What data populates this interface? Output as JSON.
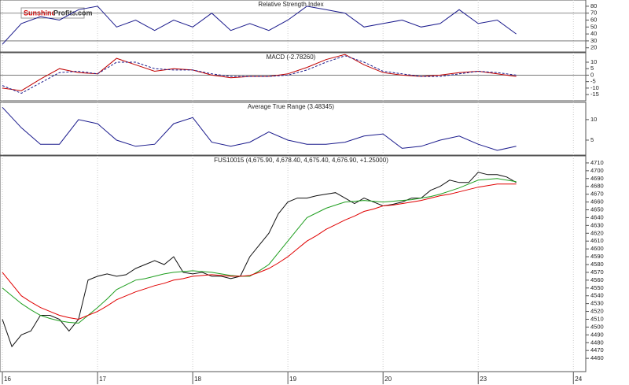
{
  "logo": {
    "part1": "Sunshine",
    "part2": "Profits.com"
  },
  "chart_data": [
    {
      "type": "line",
      "title": "Relative Strength Index",
      "x": [
        0,
        0.2,
        0.4,
        0.6,
        0.8,
        1,
        1.2,
        1.4,
        1.6,
        1.8,
        2,
        2.2,
        2.4,
        2.6,
        2.8,
        3,
        3.2,
        3.4,
        3.6,
        3.8,
        4,
        4.2,
        4.4,
        4.6,
        4.8,
        5,
        5.2,
        5.4
      ],
      "series": [
        {
          "color": "#1a1a8c",
          "values": [
            25,
            55,
            65,
            60,
            75,
            80,
            50,
            60,
            45,
            60,
            50,
            70,
            45,
            55,
            45,
            60,
            80,
            75,
            70,
            50,
            55,
            60,
            50,
            55,
            75,
            55,
            60,
            40
          ]
        }
      ],
      "ylim": [
        14,
        89
      ],
      "yticks": [
        20,
        30,
        40,
        50,
        60,
        70,
        80
      ],
      "reference_lines": [
        70,
        30
      ]
    },
    {
      "type": "line",
      "title": "MACD (-2.78260)",
      "x": [
        0,
        0.2,
        0.4,
        0.6,
        0.8,
        1,
        1.2,
        1.4,
        1.6,
        1.8,
        2,
        2.2,
        2.4,
        2.6,
        2.8,
        3,
        3.2,
        3.4,
        3.6,
        3.8,
        4,
        4.2,
        4.4,
        4.6,
        4.8,
        5,
        5.2,
        5.4
      ],
      "series": [
        {
          "color": "#c00000",
          "values": [
            -10,
            -12,
            -3,
            5,
            2,
            1,
            13,
            8,
            3,
            5,
            4,
            0,
            -2,
            -1,
            -1,
            1,
            6,
            12,
            16,
            8,
            2,
            0,
            -1,
            0,
            2,
            3,
            1,
            -1
          ]
        },
        {
          "color": "#1a1a8c",
          "style": "dashed",
          "values": [
            -8,
            -14,
            -6,
            2,
            3,
            1,
            10,
            10,
            5,
            4,
            4,
            1,
            -1,
            -1,
            -1,
            0,
            4,
            10,
            15,
            10,
            3,
            1,
            -1,
            -1,
            1,
            3,
            2,
            0
          ]
        }
      ],
      "ylim": [
        -19.8,
        17.3
      ],
      "yticks": [
        10,
        5,
        0,
        -5,
        -10,
        -15
      ],
      "reference_lines": [
        0
      ]
    },
    {
      "type": "line",
      "title": "Average True Range (3.48345)",
      "x": [
        0,
        0.2,
        0.4,
        0.6,
        0.8,
        1,
        1.2,
        1.4,
        1.6,
        1.8,
        2,
        2.2,
        2.4,
        2.6,
        2.8,
        3,
        3.2,
        3.4,
        3.6,
        3.8,
        4,
        4.2,
        4.4,
        4.6,
        4.8,
        5,
        5.2,
        5.4
      ],
      "series": [
        {
          "color": "#1a1a8c",
          "values": [
            13,
            8,
            4,
            4,
            10,
            9,
            5,
            3.5,
            4,
            9,
            10.5,
            4.5,
            3.5,
            4.5,
            7,
            5,
            4,
            4,
            4.5,
            6,
            6.5,
            3,
            3.5,
            5,
            6,
            4,
            2.5,
            3.5
          ]
        }
      ],
      "ylim": [
        1.35,
        14.2
      ],
      "yticks": [
        10,
        5
      ]
    },
    {
      "type": "line",
      "title": "FUS10015 (4,675.90, 4,678.40, 4,675.40, 4,676.90, +1.25000)",
      "x": [
        0,
        0.1,
        0.2,
        0.3,
        0.4,
        0.5,
        0.6,
        0.7,
        0.8,
        0.9,
        1,
        1.1,
        1.2,
        1.3,
        1.4,
        1.5,
        1.6,
        1.7,
        1.8,
        1.9,
        2,
        2.1,
        2.2,
        2.3,
        2.4,
        2.5,
        2.6,
        2.7,
        2.8,
        2.9,
        3,
        3.1,
        3.2,
        3.3,
        3.4,
        3.5,
        3.6,
        3.7,
        3.8,
        3.9,
        4,
        4.1,
        4.2,
        4.3,
        4.4,
        4.5,
        4.6,
        4.7,
        4.8,
        4.9,
        5,
        5.1,
        5.2,
        5.3,
        5.4
      ],
      "series": [
        {
          "color": "#111111",
          "values": [
            4510,
            4475,
            4490,
            4495,
            4515,
            4515,
            4510,
            4495,
            4510,
            4560,
            4565,
            4568,
            4565,
            4567,
            4575,
            4580,
            4585,
            4580,
            4590,
            4570,
            4568,
            4570,
            4565,
            4565,
            4562,
            4565,
            4590,
            4605,
            4620,
            4645,
            4660,
            4665,
            4665,
            4668,
            4670,
            4672,
            4665,
            4658,
            4665,
            4660,
            4655,
            4657,
            4660,
            4665,
            4665,
            4675,
            4680,
            4688,
            4685,
            4685,
            4698,
            4695,
            4695,
            4692,
            4685
          ]
        },
        {
          "color": "#1f9e1f",
          "values": [
            4550,
            4540,
            4530,
            4522,
            4515,
            4511,
            4508,
            4506,
            4505,
            4515,
            4525,
            4536,
            4548,
            4554,
            4560,
            4562,
            4565,
            4568,
            4570,
            4571,
            4572,
            4571,
            4570,
            4568,
            4566,
            4565,
            4565,
            4572,
            4580,
            4595,
            4610,
            4625,
            4640,
            4646,
            4652,
            4656,
            4660,
            4661,
            4662,
            4661,
            4660,
            4661,
            4662,
            4663,
            4665,
            4667,
            4670,
            4674,
            4678,
            4683,
            4688,
            4689,
            4690,
            4688,
            4686
          ]
        },
        {
          "color": "#e00000",
          "values": [
            4570,
            4555,
            4540,
            4532,
            4525,
            4520,
            4515,
            4512,
            4510,
            4515,
            4520,
            4527,
            4535,
            4540,
            4545,
            4549,
            4553,
            4556,
            4560,
            4562,
            4565,
            4566,
            4567,
            4566,
            4565,
            4565,
            4566,
            4570,
            4575,
            4582,
            4590,
            4600,
            4610,
            4617,
            4625,
            4631,
            4637,
            4642,
            4648,
            4651,
            4655,
            4656,
            4658,
            4660,
            4662,
            4665,
            4668,
            4670,
            4673,
            4676,
            4679,
            4681,
            4683,
            4683,
            4683
          ]
        }
      ],
      "ylim": [
        4443,
        4719
      ],
      "yticks": [
        4460,
        4470,
        4480,
        4490,
        4500,
        4510,
        4520,
        4530,
        4540,
        4550,
        4560,
        4570,
        4580,
        4590,
        4600,
        4610,
        4620,
        4630,
        4640,
        4650,
        4660,
        4670,
        4680,
        4690,
        4700,
        4710
      ],
      "xlim": [
        -0.025,
        6.13
      ],
      "xticks": [
        {
          "value": 0,
          "label": "16"
        },
        {
          "value": 1,
          "label": "17"
        },
        {
          "value": 2,
          "label": "18"
        },
        {
          "value": 3,
          "label": "19"
        },
        {
          "value": 4,
          "label": "20"
        },
        {
          "value": 5,
          "label": "23"
        },
        {
          "value": 6,
          "label": "24"
        }
      ]
    }
  ]
}
